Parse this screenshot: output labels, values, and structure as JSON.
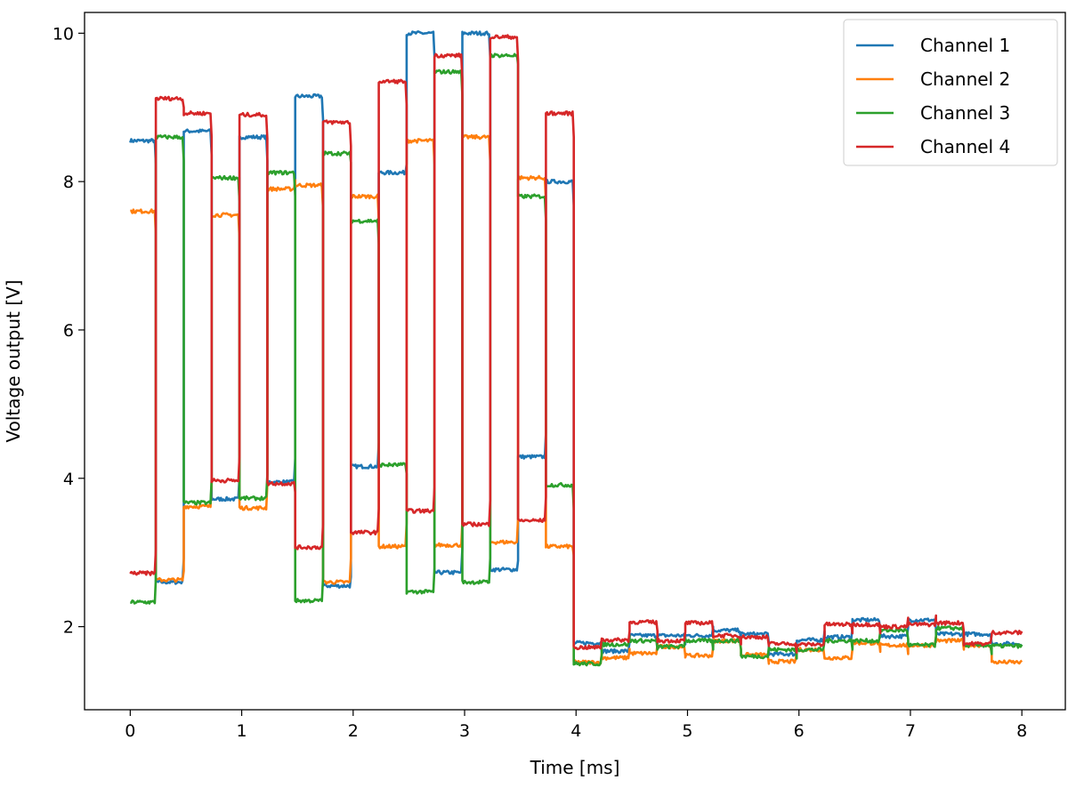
{
  "chart_data": {
    "type": "line",
    "title": "",
    "xlabel": "Time [ms]",
    "ylabel": "Voltage output [V]",
    "xlim": [
      -0.41,
      8.39
    ],
    "ylim": [
      0.88,
      10.28
    ],
    "xticks": [
      "0",
      "1",
      "2",
      "3",
      "4",
      "5",
      "6",
      "7",
      "8"
    ],
    "yticks": [
      "2",
      "4",
      "6",
      "8",
      "10"
    ],
    "grid": false,
    "legend": "top-right",
    "segment_starts": [
      0,
      0.23,
      0.48,
      0.73,
      0.98,
      1.23,
      1.48,
      1.73,
      1.98,
      2.23,
      2.48,
      2.73,
      2.98,
      3.23,
      3.48,
      3.73,
      3.98,
      4.23,
      4.48,
      4.73,
      4.98,
      5.23,
      5.48,
      5.73,
      5.98,
      6.23,
      6.48,
      6.73,
      6.98,
      7.23,
      7.48,
      7.73
    ],
    "x_end": 8.0,
    "series": [
      {
        "name": "Channel 1",
        "color": "#1f77b4",
        "values": [
          8.55,
          2.6,
          8.68,
          3.72,
          8.6,
          3.95,
          9.15,
          2.55,
          4.16,
          8.12,
          10.0,
          2.73,
          10.0,
          2.77,
          4.29,
          8.0,
          1.78,
          1.67,
          1.88,
          1.88,
          1.88,
          1.95,
          1.9,
          1.63,
          1.82,
          1.86,
          2.09,
          1.87,
          2.09,
          1.9,
          1.9,
          1.77
        ]
      },
      {
        "name": "Channel 2",
        "color": "#ff7f0e",
        "values": [
          7.6,
          2.63,
          3.62,
          7.55,
          3.6,
          7.9,
          7.95,
          2.6,
          7.8,
          3.08,
          8.55,
          3.1,
          8.6,
          3.14,
          8.05,
          3.08,
          1.52,
          1.58,
          1.64,
          1.73,
          1.61,
          1.81,
          1.62,
          1.53,
          1.69,
          1.58,
          1.78,
          1.75,
          1.75,
          1.81,
          1.75,
          1.52
        ]
      },
      {
        "name": "Channel 3",
        "color": "#2ca02c",
        "values": [
          2.33,
          8.6,
          3.67,
          8.05,
          3.73,
          8.12,
          2.35,
          8.38,
          7.47,
          4.18,
          2.47,
          9.48,
          2.6,
          9.7,
          7.8,
          3.91,
          1.5,
          1.76,
          1.81,
          1.73,
          1.81,
          1.81,
          1.6,
          1.69,
          1.69,
          1.81,
          1.81,
          1.95,
          1.75,
          1.98,
          1.75,
          1.74
        ]
      },
      {
        "name": "Channel 4",
        "color": "#d62728",
        "values": [
          2.72,
          9.12,
          8.92,
          3.97,
          8.9,
          3.93,
          3.07,
          8.8,
          3.27,
          9.35,
          3.56,
          9.7,
          3.38,
          9.95,
          3.43,
          8.92,
          1.72,
          1.82,
          2.06,
          1.81,
          2.05,
          1.88,
          1.86,
          1.77,
          1.76,
          2.03,
          2.03,
          2.0,
          2.03,
          2.05,
          1.77,
          1.92
        ]
      }
    ]
  }
}
